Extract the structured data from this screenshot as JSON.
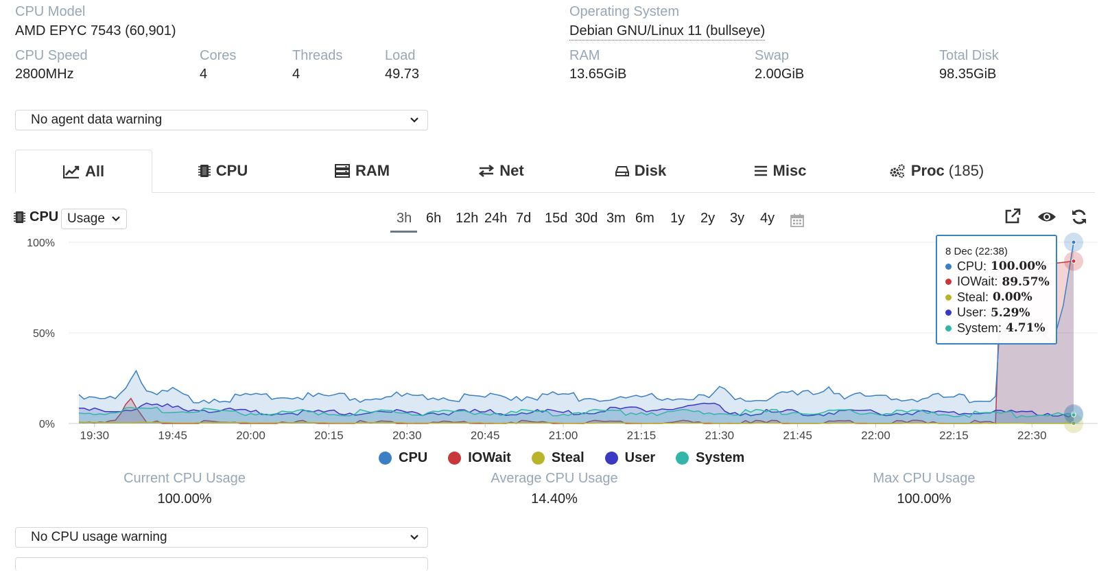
{
  "info": {
    "cpu_model_label": "CPU Model",
    "cpu_model_value": "AMD EPYC 7543 (60,901)",
    "os_label": "Operating System",
    "os_value": "Debian GNU/Linux 11 (bullseye)",
    "cpu_speed_label": "CPU Speed",
    "cpu_speed_value": "2800MHz",
    "cores_label": "Cores",
    "cores_value": "4",
    "threads_label": "Threads",
    "threads_value": "4",
    "load_label": "Load",
    "load_value": "49.73",
    "ram_label": "RAM",
    "ram_value": "13.65GiB",
    "swap_label": "Swap",
    "swap_value": "2.00GiB",
    "disk_label": "Total Disk",
    "disk_value": "98.35GiB"
  },
  "agent_warning_select": "No agent data warning",
  "tabs": [
    {
      "label": "All",
      "icon": "line-chart-icon"
    },
    {
      "label": "CPU",
      "icon": "chip-icon"
    },
    {
      "label": "RAM",
      "icon": "server-icon"
    },
    {
      "label": "Net",
      "icon": "exchange-icon"
    },
    {
      "label": "Disk",
      "icon": "hdd-icon"
    },
    {
      "label": "Misc",
      "icon": "bars-icon"
    },
    {
      "label": "Proc",
      "icon": "cogs-icon",
      "count": "(185)"
    }
  ],
  "panel": {
    "title": "CPU",
    "mode_select": "Usage",
    "ranges": [
      "3h",
      "6h",
      "12h",
      "24h",
      "7d",
      "15d",
      "30d",
      "3m",
      "6m",
      "1y",
      "2y",
      "3y",
      "4y"
    ],
    "active_range": "3h",
    "tools": [
      "external-link-icon",
      "eye-icon",
      "refresh-icon",
      "calendar-icon"
    ]
  },
  "tooltip": {
    "time": "8 Dec (22:38)",
    "rows": [
      {
        "name": "CPU",
        "value": "100.00%",
        "color": "#3b80c3"
      },
      {
        "name": "IOWait",
        "value": "89.57%",
        "color": "#c7373b"
      },
      {
        "name": "Steal",
        "value": "0.00%",
        "color": "#b9b42c"
      },
      {
        "name": "User",
        "value": "5.29%",
        "color": "#3939c1"
      },
      {
        "name": "System",
        "value": "4.71%",
        "color": "#33b5a9"
      }
    ]
  },
  "chart_data": {
    "type": "area",
    "x_ticks": [
      "19:30",
      "19:45",
      "20:00",
      "20:15",
      "20:30",
      "20:45",
      "21:00",
      "21:15",
      "21:30",
      "21:45",
      "22:00",
      "22:15",
      "22:30"
    ],
    "y_ticks": [
      "0%",
      "50%",
      "100%"
    ],
    "ylim": [
      0,
      100
    ],
    "xlim": [
      "19:27",
      "22:38"
    ],
    "grid": true,
    "legend_position": "bottom",
    "series": [
      {
        "name": "CPU",
        "color": "#3b80c3",
        "x": [
          "19:27",
          "19:30",
          "19:33",
          "19:36",
          "19:38",
          "19:40",
          "19:42",
          "19:45",
          "19:48",
          "19:51",
          "19:55",
          "20:00",
          "20:10",
          "20:20",
          "20:30",
          "20:40",
          "20:50",
          "21:00",
          "21:10",
          "21:20",
          "21:28",
          "21:30",
          "21:32",
          "21:40",
          "21:48",
          "21:51",
          "21:54",
          "22:00",
          "22:10",
          "22:20",
          "22:23",
          "22:24",
          "22:25",
          "22:28",
          "22:30",
          "22:32",
          "22:34",
          "22:36",
          "22:38"
        ],
        "y": [
          14,
          12,
          13,
          20,
          30,
          20,
          15,
          18,
          14,
          13,
          14,
          14,
          15,
          14,
          15,
          14,
          15,
          15,
          14,
          14,
          14,
          20,
          14,
          15,
          16,
          21,
          15,
          14,
          14,
          14,
          15,
          62,
          60,
          58,
          52,
          50,
          44,
          65,
          100
        ]
      },
      {
        "name": "IOWait",
        "color": "#c7373b",
        "x": [
          "19:27",
          "19:34",
          "19:37",
          "19:39",
          "19:40",
          "22:23",
          "22:24",
          "22:38"
        ],
        "y": [
          0,
          3,
          13,
          4,
          0,
          0,
          85,
          89.57
        ]
      },
      {
        "name": "Steal",
        "color": "#b9b42c",
        "x": [
          "19:27",
          "22:38"
        ],
        "y": [
          0.5,
          0.0
        ]
      },
      {
        "name": "User",
        "color": "#3939c1",
        "x": [
          "19:27",
          "19:37",
          "19:39",
          "20:00",
          "21:00",
          "21:30",
          "21:32",
          "22:00",
          "22:20",
          "22:38"
        ],
        "y": [
          7,
          8,
          10,
          6,
          6,
          10,
          6,
          6,
          6,
          5.29
        ]
      },
      {
        "name": "System",
        "color": "#33b5a9",
        "x": [
          "19:27",
          "19:37",
          "20:00",
          "21:00",
          "21:30",
          "22:00",
          "22:20",
          "22:38"
        ],
        "y": [
          5,
          8,
          6,
          6,
          6,
          6,
          5,
          4.71
        ]
      }
    ]
  },
  "metrics": {
    "current_label": "Current CPU Usage",
    "current_value": "100.00%",
    "average_label": "Average CPU Usage",
    "average_value": "14.40%",
    "max_label": "Max CPU Usage",
    "max_value": "100.00%"
  },
  "cpu_warning_select": "No CPU usage warning"
}
